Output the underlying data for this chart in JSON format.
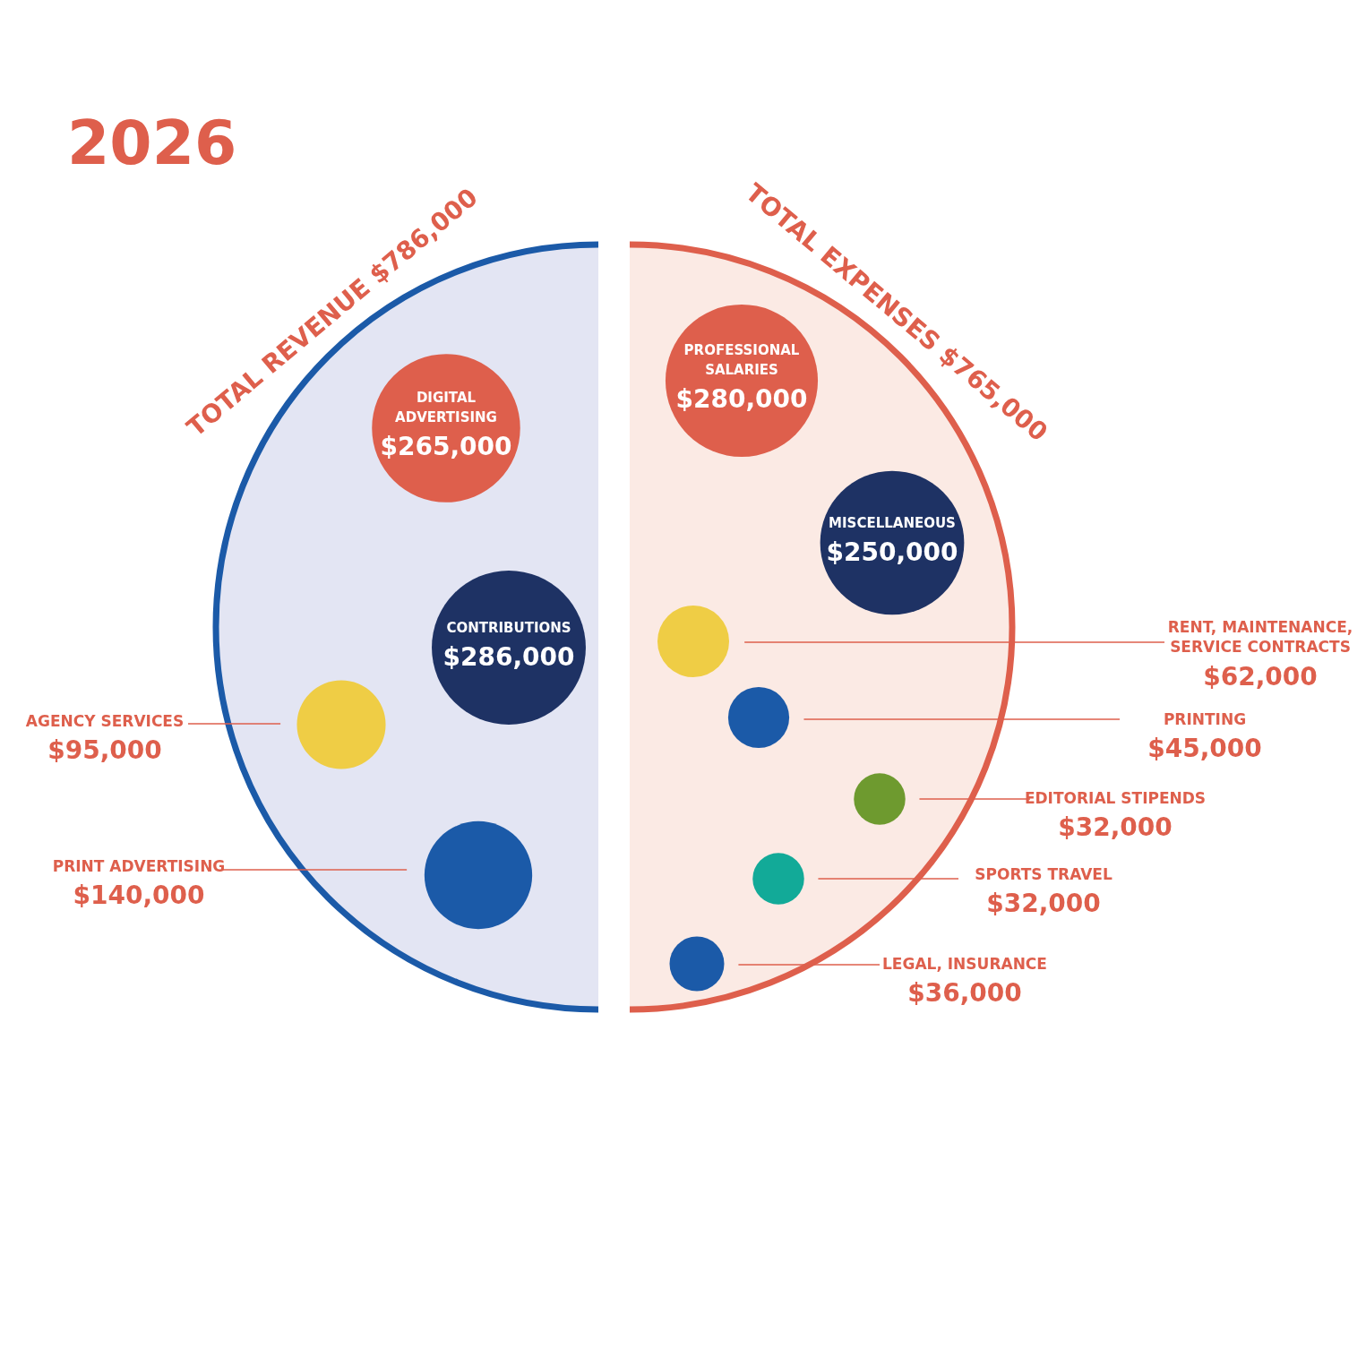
{
  "chart_data": [
    {
      "type": "other",
      "title": "TOTAL REVENUE $786,000",
      "annotations": [
        "2026"
      ],
      "categories": [
        "DIGITAL ADVERTISING",
        "CONTRIBUTIONS",
        "AGENCY SERVICES",
        "PRINT ADVERTISING"
      ],
      "values": [
        265000,
        286000,
        95000,
        140000
      ],
      "value_labels": [
        "$265,000",
        "$286,000",
        "$95,000",
        "$140,000"
      ],
      "colors": [
        "#de5f4c",
        "#1e3264",
        "#efcd45",
        "#1b5aa8"
      ]
    },
    {
      "type": "other",
      "title": "TOTAL EXPENSES $765,000",
      "categories": [
        "PROFESSIONAL SALARIES",
        "MISCELLANEOUS",
        "RENT, MAINTENANCE, SERVICE CONTRACTS",
        "PRINTING",
        "EDITORIAL STIPENDS",
        "SPORTS TRAVEL",
        "LEGAL, INSURANCE"
      ],
      "values": [
        280000,
        250000,
        62000,
        45000,
        32000,
        32000,
        36000
      ],
      "value_labels": [
        "$280,000",
        "$250,000",
        "$62,000",
        "$45,000",
        "$32,000",
        "$32,000",
        "$36,000"
      ],
      "colors": [
        "#de5f4c",
        "#1e3264",
        "#efcd45",
        "#1b5aa8",
        "#6e9a2f",
        "#12aa98",
        "#1b5aa8"
      ]
    }
  ]
}
